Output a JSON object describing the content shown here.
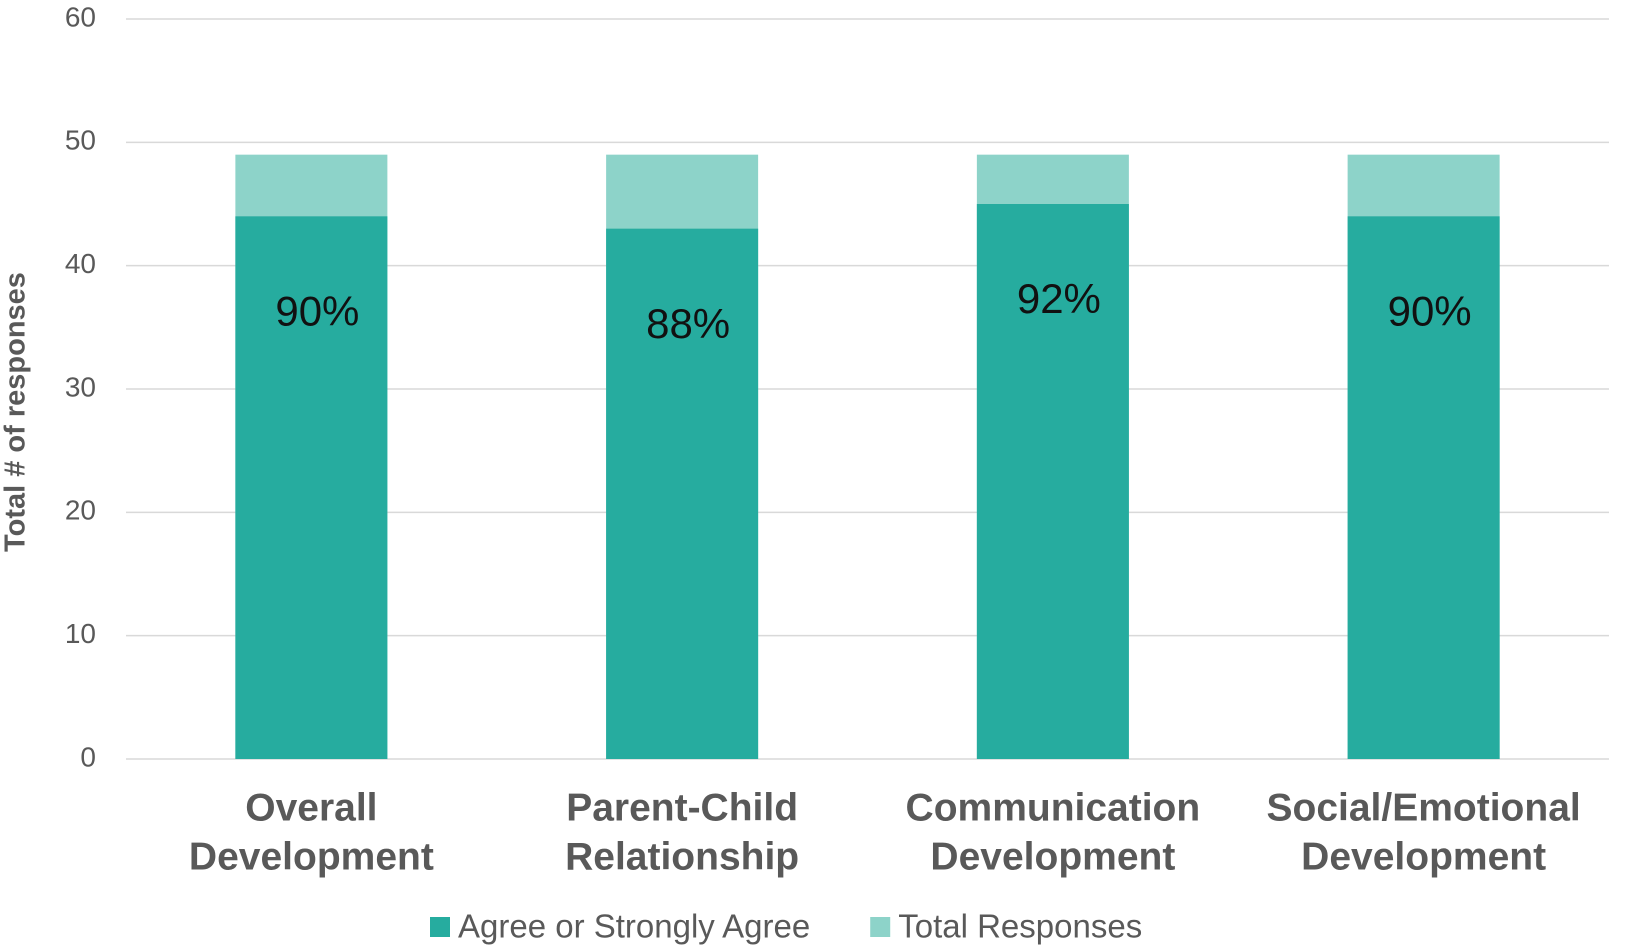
{
  "chart_data": {
    "type": "bar",
    "stacked": false,
    "y_axis_label": "Total # of responses",
    "categories": [
      [
        "Overall",
        "Development"
      ],
      [
        "Parent-Child",
        "Relationship"
      ],
      [
        "Communication",
        "Development"
      ],
      [
        "Social/Emotional",
        "Development"
      ]
    ],
    "series": [
      {
        "name": "Total Responses",
        "color": "#8dd3c9",
        "values": [
          49,
          49,
          49,
          49
        ]
      },
      {
        "name": "Agree or Strongly Agree",
        "color": "#26ac9f",
        "values": [
          44,
          43,
          45,
          44
        ]
      }
    ],
    "annotations": [
      "90%",
      "88%",
      "92%",
      "90%"
    ],
    "legend_order": [
      1,
      0
    ],
    "ylim": [
      0,
      60
    ],
    "yticks": [
      0,
      10,
      20,
      30,
      40,
      50,
      60
    ],
    "grid": true
  }
}
